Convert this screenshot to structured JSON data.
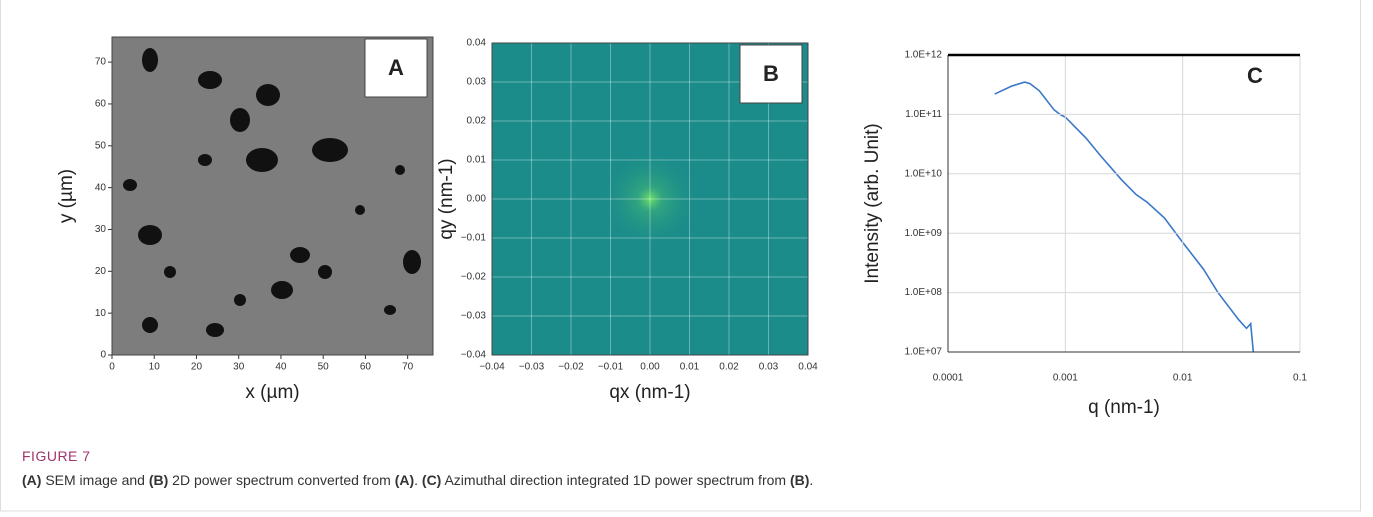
{
  "chart_data": [
    {
      "type": "image",
      "panel_label": "A",
      "xlabel": "x (µm)",
      "ylabel": "y (µm)",
      "xlim": [
        0,
        76
      ],
      "ylim": [
        0,
        76
      ],
      "xticks": [
        0,
        10,
        20,
        30,
        40,
        50,
        60,
        70
      ],
      "yticks": [
        0,
        10,
        20,
        30,
        40,
        50,
        60,
        70
      ]
    },
    {
      "type": "heatmap",
      "panel_label": "B",
      "xlabel": "qx (nm-1)",
      "ylabel": "qy (nm-1)",
      "xlim": [
        -0.04,
        0.04
      ],
      "ylim": [
        -0.04,
        0.04
      ],
      "grid": true,
      "color": "#1b8c8a",
      "xticks": [
        {
          "value": -0.04,
          "label": "−0.04"
        },
        {
          "value": -0.03,
          "label": "−0.03"
        },
        {
          "value": -0.02,
          "label": "−0.02"
        },
        {
          "value": -0.01,
          "label": "−0.01"
        },
        {
          "value": 0,
          "label": "0.00"
        },
        0.01,
        0.02,
        0.03,
        0.04
      ],
      "yticks": [
        {
          "value": -0.04,
          "label": "−0.04"
        },
        {
          "value": -0.03,
          "label": "−0.03"
        },
        {
          "value": -0.02,
          "label": "−0.02"
        },
        {
          "value": -0.01,
          "label": "−0.01"
        },
        {
          "value": 0,
          "label": "0.00"
        },
        0.01,
        0.02,
        0.03,
        0.04
      ]
    },
    {
      "type": "line",
      "panel_label": "C",
      "xlabel": "q (nm-1)",
      "ylabel": "Intensity (arb. Unit)",
      "log_x": true,
      "log_y": true,
      "grid": true,
      "color": "#3a78c8",
      "xlim": [
        0.0001,
        0.1
      ],
      "ylim": [
        10000000,
        1000000000000
      ],
      "xticks": [
        0.0001,
        0.001,
        0.01,
        0.1
      ],
      "yticks": [
        {
          "value": 10000000,
          "label": "1.0E+07"
        },
        {
          "value": 100000000,
          "label": "1.0E+08"
        },
        {
          "value": 1000000000,
          "label": "1.0E+09"
        },
        {
          "value": 10000000000,
          "label": "1.0E+10"
        },
        {
          "value": 100000000000,
          "label": "1.0E+11"
        },
        {
          "value": 1000000000000,
          "label": "1.0E+12"
        }
      ],
      "x": [
        0.00025,
        0.00035,
        0.00045,
        0.0005,
        0.0006,
        0.0008,
        0.0009,
        0.001,
        0.0015,
        0.002,
        0.003,
        0.004,
        0.005,
        0.007,
        0.01,
        0.015,
        0.02,
        0.03,
        0.035,
        0.038,
        0.04
      ],
      "values": [
        220000000000,
        300000000000,
        350000000000,
        330000000000,
        250000000000,
        120000000000,
        100000000000,
        90000000000,
        40000000000,
        20000000000,
        8000000000,
        4500000000,
        3300000000,
        1800000000,
        700000000,
        250000000,
        100000000,
        35000000,
        25000000,
        30000000,
        10000000
      ]
    }
  ],
  "caption": {
    "label": "FIGURE 7",
    "parts": [
      {
        "text": "(A)",
        "bold": true
      },
      {
        "text": " SEM image and ",
        "bold": false
      },
      {
        "text": "(B)",
        "bold": true
      },
      {
        "text": " 2D power spectrum converted from ",
        "bold": false
      },
      {
        "text": "(A)",
        "bold": true
      },
      {
        "text": ". ",
        "bold": false
      },
      {
        "text": "(C)",
        "bold": true
      },
      {
        "text": " Azimuthal direction integrated 1D power spectrum from ",
        "bold": false
      },
      {
        "text": "(B)",
        "bold": true
      },
      {
        "text": ".",
        "bold": false
      }
    ]
  }
}
